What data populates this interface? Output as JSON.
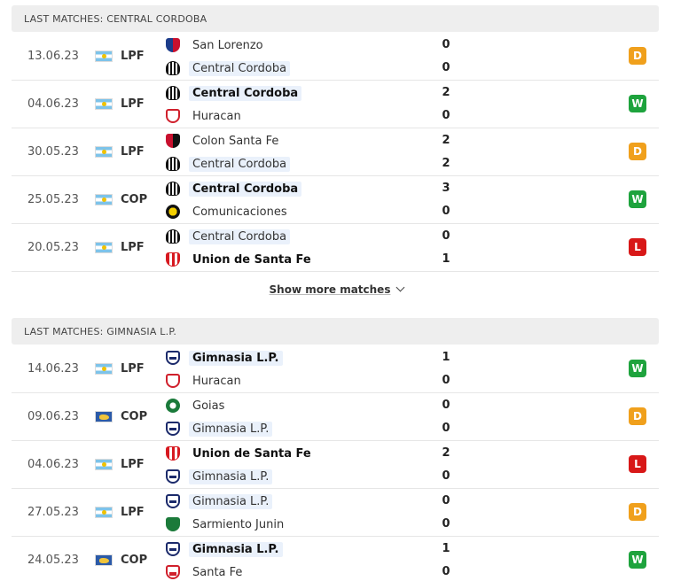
{
  "section1": {
    "title": "LAST MATCHES: CENTRAL CORDOBA",
    "matches": [
      {
        "date": "13.06.23",
        "flag": "argentina",
        "comp": "LPF",
        "home": {
          "name": "San Lorenzo",
          "logo": "sanlorenzo",
          "score": "0",
          "focus": false,
          "winner": false
        },
        "away": {
          "name": "Central Cordoba",
          "logo": "central",
          "score": "0",
          "focus": true,
          "winner": false
        },
        "result": "D"
      },
      {
        "date": "04.06.23",
        "flag": "argentina",
        "comp": "LPF",
        "home": {
          "name": "Central Cordoba",
          "logo": "central",
          "score": "2",
          "focus": true,
          "winner": true
        },
        "away": {
          "name": "Huracan",
          "logo": "huracan",
          "score": "0",
          "focus": false,
          "winner": false
        },
        "result": "W"
      },
      {
        "date": "30.05.23",
        "flag": "argentina",
        "comp": "LPF",
        "home": {
          "name": "Colon Santa Fe",
          "logo": "colon",
          "score": "2",
          "focus": false,
          "winner": false
        },
        "away": {
          "name": "Central Cordoba",
          "logo": "central",
          "score": "2",
          "focus": true,
          "winner": false
        },
        "result": "D"
      },
      {
        "date": "25.05.23",
        "flag": "argentina",
        "comp": "COP",
        "home": {
          "name": "Central Cordoba",
          "logo": "central",
          "score": "3",
          "focus": true,
          "winner": true
        },
        "away": {
          "name": "Comunicaciones",
          "logo": "comunic",
          "score": "0",
          "focus": false,
          "winner": false
        },
        "result": "W"
      },
      {
        "date": "20.05.23",
        "flag": "argentina",
        "comp": "LPF",
        "home": {
          "name": "Central Cordoba",
          "logo": "central",
          "score": "0",
          "focus": true,
          "winner": false
        },
        "away": {
          "name": "Union de Santa Fe",
          "logo": "union",
          "score": "1",
          "focus": false,
          "winner": true
        },
        "result": "L"
      }
    ]
  },
  "show_more_label": "Show more matches",
  "section2": {
    "title": "LAST MATCHES: GIMNASIA L.P.",
    "matches": [
      {
        "date": "14.06.23",
        "flag": "argentina",
        "comp": "LPF",
        "home": {
          "name": "Gimnasia L.P.",
          "logo": "gimnasia",
          "score": "1",
          "focus": true,
          "winner": true
        },
        "away": {
          "name": "Huracan",
          "logo": "huracan",
          "score": "0",
          "focus": false,
          "winner": false
        },
        "result": "W"
      },
      {
        "date": "09.06.23",
        "flag": "world",
        "comp": "COP",
        "home": {
          "name": "Goias",
          "logo": "goias",
          "score": "0",
          "focus": false,
          "winner": false
        },
        "away": {
          "name": "Gimnasia L.P.",
          "logo": "gimnasia",
          "score": "0",
          "focus": true,
          "winner": false
        },
        "result": "D"
      },
      {
        "date": "04.06.23",
        "flag": "argentina",
        "comp": "LPF",
        "home": {
          "name": "Union de Santa Fe",
          "logo": "union",
          "score": "2",
          "focus": false,
          "winner": true
        },
        "away": {
          "name": "Gimnasia L.P.",
          "logo": "gimnasia",
          "score": "0",
          "focus": true,
          "winner": false
        },
        "result": "L"
      },
      {
        "date": "27.05.23",
        "flag": "argentina",
        "comp": "LPF",
        "home": {
          "name": "Gimnasia L.P.",
          "logo": "gimnasia",
          "score": "0",
          "focus": true,
          "winner": false
        },
        "away": {
          "name": "Sarmiento Junin",
          "logo": "sarmiento",
          "score": "0",
          "focus": false,
          "winner": false
        },
        "result": "D"
      },
      {
        "date": "24.05.23",
        "flag": "world",
        "comp": "COP",
        "home": {
          "name": "Gimnasia L.P.",
          "logo": "gimnasia",
          "score": "1",
          "focus": true,
          "winner": true
        },
        "away": {
          "name": "Santa Fe",
          "logo": "santafe",
          "score": "0",
          "focus": false,
          "winner": false
        },
        "result": "W"
      }
    ]
  }
}
